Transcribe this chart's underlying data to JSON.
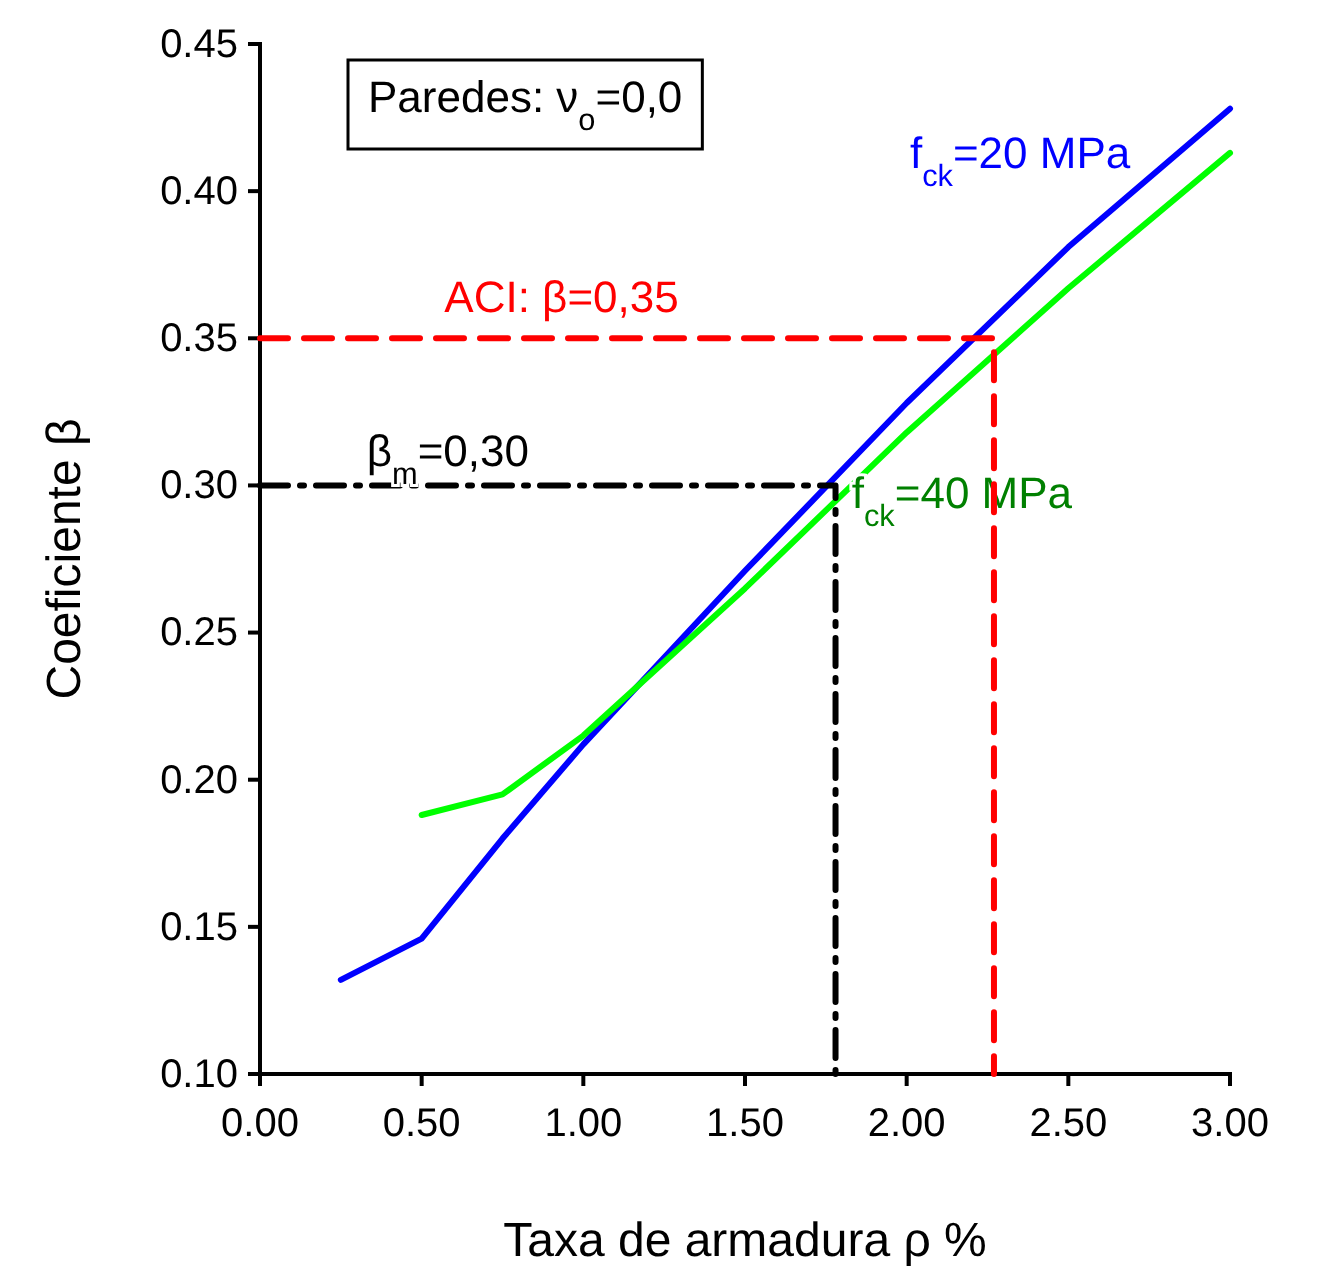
{
  "chart_data": {
    "type": "line",
    "xlabel": "Taxa de armadura ρ %",
    "ylabel": "Coeficiente β",
    "xlim": [
      0,
      3
    ],
    "xticks": [
      {
        "value": 0,
        "label": "0.00"
      },
      {
        "value": 0.5,
        "label": "0.50"
      },
      {
        "value": 1,
        "label": "1.00"
      },
      {
        "value": 1.5,
        "label": "1.50"
      },
      {
        "value": 2,
        "label": "2.00"
      },
      {
        "value": 2.5,
        "label": "2.50"
      },
      {
        "value": 3,
        "label": "3.00"
      }
    ],
    "ylim": [
      0.1,
      0.45
    ],
    "yticks": [
      {
        "value": 0.1,
        "label": "0.10"
      },
      {
        "value": 0.15,
        "label": "0.15"
      },
      {
        "value": 0.2,
        "label": "0.20"
      },
      {
        "value": 0.25,
        "label": "0.25"
      },
      {
        "value": 0.3,
        "label": "0.30"
      },
      {
        "value": 0.35,
        "label": "0.35"
      },
      {
        "value": 0.4,
        "label": "0.40"
      },
      {
        "value": 0.45,
        "label": "0.45"
      }
    ],
    "grid": false,
    "legend": false,
    "marker": "none",
    "annotations": [
      "Paredes: ν$_{o}$=0,0"
    ],
    "series": [
      {
        "name": "f$_{ck}$=20 MPa",
        "color": "#0000ff",
        "line_style": "solid",
        "x": [
          0.25,
          0.5,
          0.75,
          1.0,
          1.5,
          2.0,
          2.5,
          3.0
        ],
        "values": [
          0.132,
          0.146,
          0.18,
          0.212,
          0.271,
          0.328,
          0.381,
          0.428
        ]
      },
      {
        "name": "f$_{ck}$=40 MPa",
        "color": "#00ff00",
        "line_style": "solid",
        "x": [
          0.5,
          0.75,
          1.0,
          1.5,
          2.0,
          2.5,
          3.0
        ],
        "values": [
          0.188,
          0.195,
          0.215,
          0.265,
          0.318,
          0.367,
          0.413
        ]
      },
      {
        "name": "ACI: β=0,35",
        "color": "#ff0000",
        "line_style": "dashed",
        "x": [
          0,
          2.27,
          2.27
        ],
        "values": [
          0.35,
          0.35,
          0.1
        ]
      },
      {
        "name": "β$_{m}$=0,30",
        "color": "#000000",
        "line_style": "dashdot",
        "x": [
          0,
          1.78,
          1.78
        ],
        "values": [
          0.3,
          0.3,
          0.1
        ]
      }
    ]
  }
}
